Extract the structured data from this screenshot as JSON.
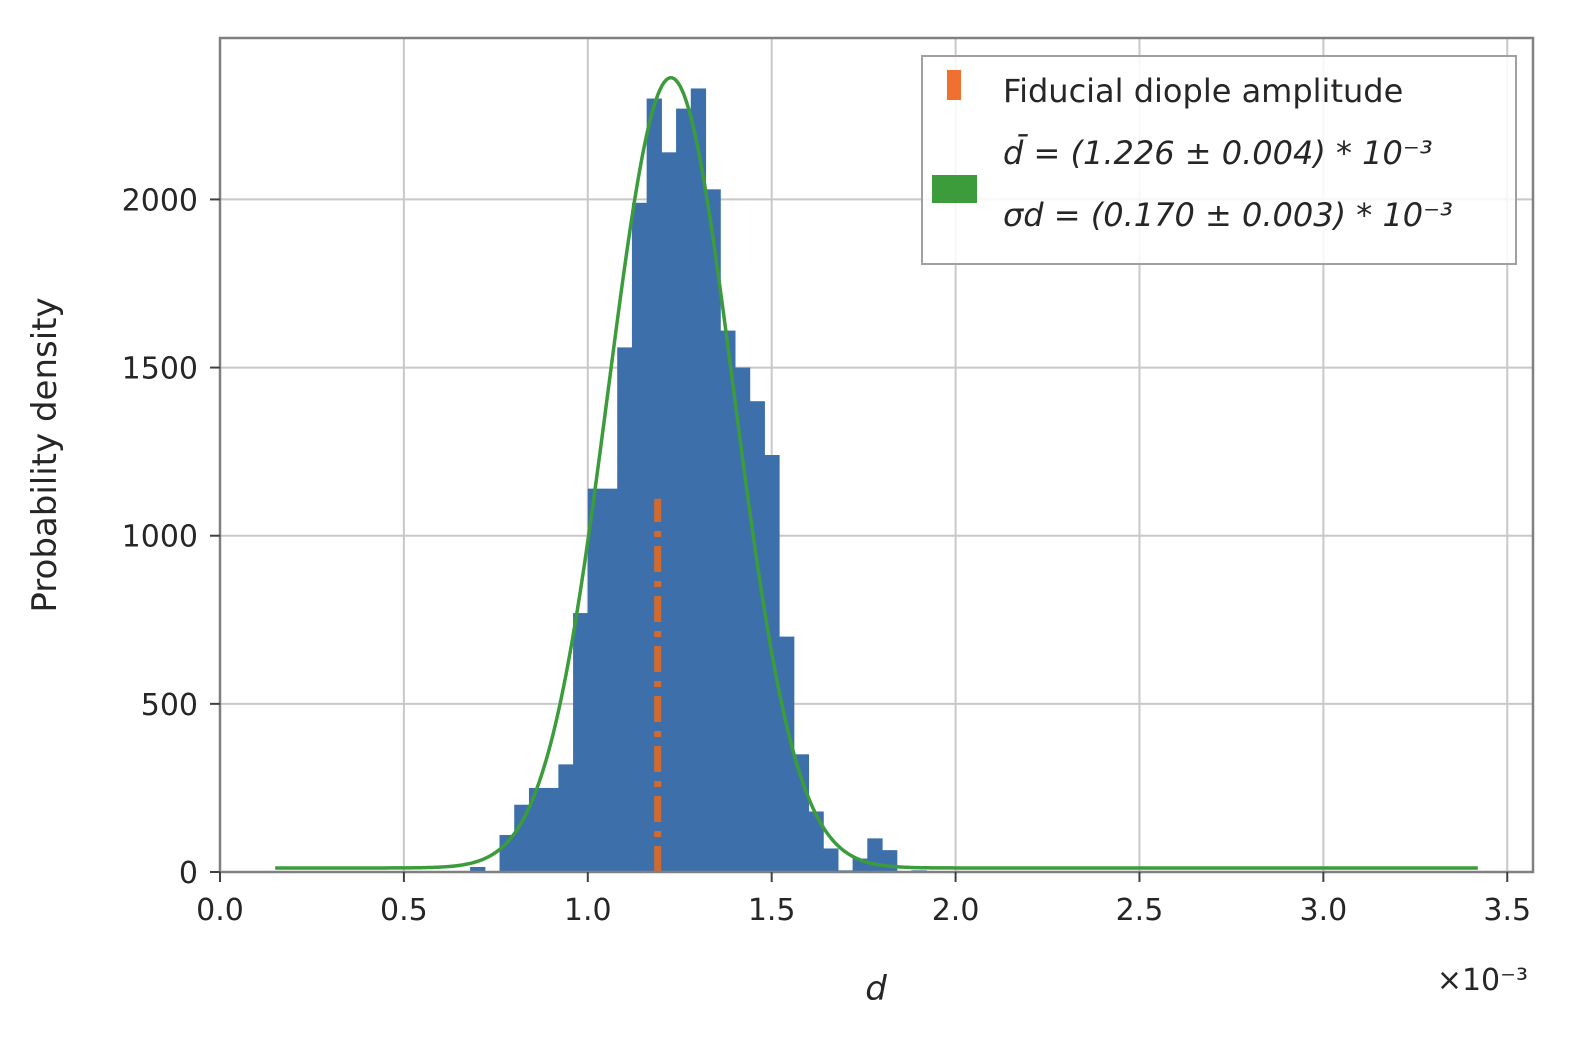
{
  "chart_data": {
    "type": "bar",
    "xlabel": "d",
    "ylabel": "Probability density",
    "x_offset_text": "×10⁻³",
    "xlim": [
      0.0,
      3.57
    ],
    "ylim": [
      0,
      2480
    ],
    "xticks": [
      0.0,
      0.5,
      1.0,
      1.5,
      2.0,
      2.5,
      3.0,
      3.5
    ],
    "xtick_labels": [
      "0.0",
      "0.5",
      "1.0",
      "1.5",
      "2.0",
      "2.5",
      "3.0",
      "3.5"
    ],
    "yticks": [
      0,
      500,
      1000,
      1500,
      2000
    ],
    "ytick_labels": [
      "0",
      "500",
      "1000",
      "1500",
      "2000"
    ],
    "grid": true,
    "legend_position": "top-right",
    "histogram": {
      "name": "",
      "color": "#3d70ab",
      "bin_width": 0.04,
      "bins": [
        [
          0.68,
          15
        ],
        [
          0.76,
          110
        ],
        [
          0.8,
          200
        ],
        [
          0.84,
          250
        ],
        [
          0.88,
          250
        ],
        [
          0.92,
          320
        ],
        [
          0.96,
          770
        ],
        [
          1.0,
          1140
        ],
        [
          1.04,
          1140
        ],
        [
          1.08,
          1560
        ],
        [
          1.12,
          1990
        ],
        [
          1.16,
          2300
        ],
        [
          1.2,
          2140
        ],
        [
          1.24,
          2270
        ],
        [
          1.28,
          2330
        ],
        [
          1.32,
          2030
        ],
        [
          1.36,
          1610
        ],
        [
          1.4,
          1500
        ],
        [
          1.44,
          1400
        ],
        [
          1.48,
          1240
        ],
        [
          1.52,
          700
        ],
        [
          1.56,
          350
        ],
        [
          1.6,
          180
        ],
        [
          1.64,
          70
        ],
        [
          1.68,
          5
        ],
        [
          1.72,
          40
        ],
        [
          1.76,
          100
        ],
        [
          1.8,
          65
        ],
        [
          1.88,
          5
        ]
      ]
    },
    "fiducial_line": {
      "name": "Fiducial diople amplitude",
      "x": 1.19,
      "y_range": [
        0,
        1110
      ],
      "color": "#d06a2e",
      "style": "dashdot"
    },
    "fit_curve": {
      "name_line1": "d̄ = (1.226 ± 0.004) * 10⁻³",
      "name_line2": "σd = (0.170 ± 0.003) * 10⁻³",
      "type": "gaussian",
      "mean": 1.226,
      "sigma": 0.17,
      "peak": 2350,
      "x_range": [
        0.15,
        3.42
      ],
      "color": "#3c9c3c"
    }
  }
}
